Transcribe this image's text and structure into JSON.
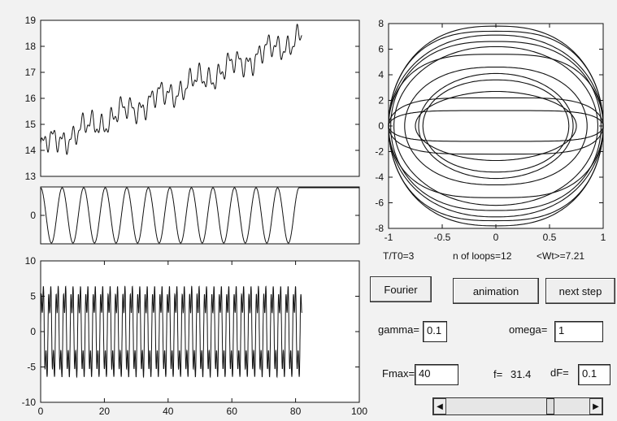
{
  "chart_data": [
    {
      "type": "line",
      "title": "",
      "xlabel": "",
      "ylabel": "",
      "ylim": [
        13,
        19
      ],
      "yticks": [
        "13",
        "14",
        "15",
        "16",
        "17",
        "18",
        "19"
      ],
      "series": [
        {
          "x_range": [
            0,
            82
          ],
          "description_values": [
            14,
            14.7,
            14.3,
            14.9,
            15.1,
            15.3,
            15.6,
            16.0,
            16.3,
            16.7,
            17.0,
            17.4,
            17.7,
            18.1,
            18.3
          ]
        }
      ]
    },
    {
      "type": "line",
      "title": "",
      "ylim": [
        -1,
        1
      ],
      "yticks": [
        "0"
      ],
      "series": [
        {
          "cycles": 12
        }
      ]
    },
    {
      "type": "line",
      "title": "",
      "xlabel": "",
      "ylabel": "",
      "xlim": [
        0,
        100
      ],
      "ylim": [
        -10,
        10
      ],
      "xticks": [
        "0",
        "20",
        "40",
        "60",
        "80",
        "100"
      ],
      "yticks": [
        "-10",
        "-5",
        "0",
        "5",
        "10"
      ],
      "series": [
        {
          "x_range": [
            0,
            82
          ],
          "amplitude": 7.5
        }
      ]
    },
    {
      "type": "line",
      "title": "",
      "xlim": [
        -1,
        1
      ],
      "ylim": [
        -8,
        8
      ],
      "xticks": [
        "-1",
        "-0.5",
        "0",
        "0.5",
        "1"
      ],
      "yticks": [
        "-8",
        "-6",
        "-4",
        "-2",
        "0",
        "2",
        "4",
        "6",
        "8"
      ],
      "series": [
        {
          "kind": "phase-portrait",
          "loops": 12
        }
      ]
    }
  ],
  "status": {
    "ratio": "T/T0=3",
    "loops": "n of loops=12",
    "wt": "<Wt>=7.21"
  },
  "buttons": {
    "fourier": "Fourier",
    "animation": "animation",
    "next_step": "next step"
  },
  "params": {
    "gamma_label": "gamma=",
    "gamma_value": "0.1",
    "omega_label": "omega=",
    "omega_value": "1",
    "fmax_label": "Fmax=",
    "fmax_value": "40",
    "f_label": "f=",
    "f_value": "31.4",
    "df_label": "dF=",
    "df_value": "0.1"
  },
  "slider": {
    "value_fraction": 0.74
  }
}
